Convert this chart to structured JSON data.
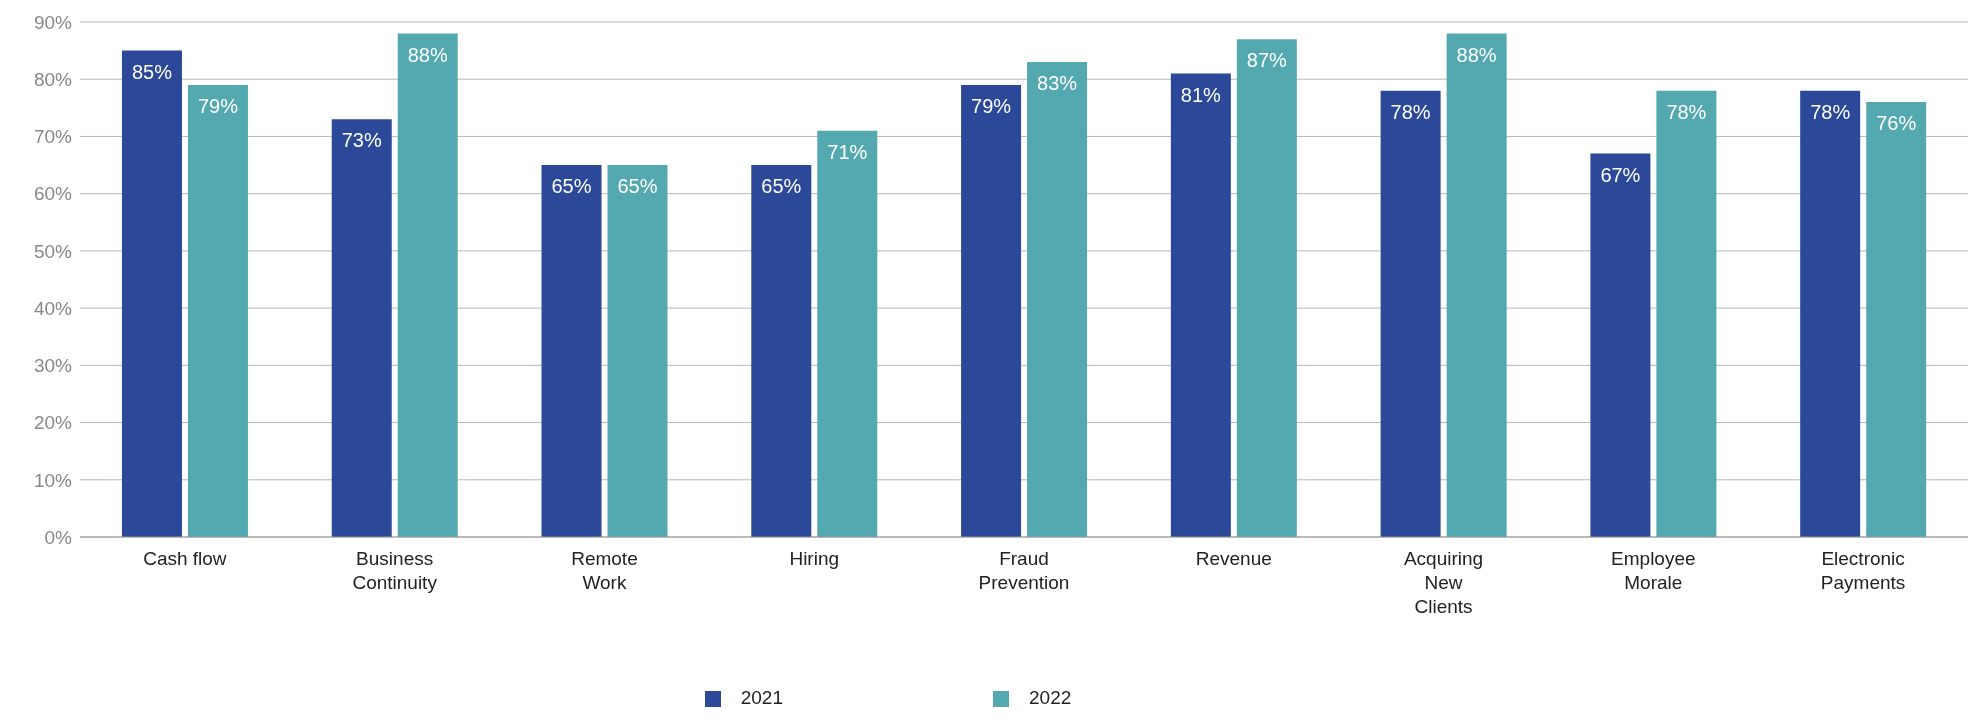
{
  "chart_data": {
    "type": "bar",
    "categories": [
      "Cash flow",
      "Business Continuity",
      "Remote Work",
      "Hiring",
      "Fraud Prevention",
      "Revenue",
      "Acquiring New Clients",
      "Employee Morale",
      "Electronic Payments"
    ],
    "series": [
      {
        "name": "2021",
        "color": "#2b4899",
        "values": [
          85,
          73,
          65,
          65,
          79,
          81,
          78,
          67,
          78
        ],
        "value_labels": [
          "85%",
          "73%",
          "65%",
          "65%",
          "79%",
          "81%",
          "78%",
          "67%",
          "78%"
        ]
      },
      {
        "name": "2022",
        "color": "#54a9b0",
        "values": [
          79,
          88,
          65,
          71,
          83,
          87,
          88,
          78,
          76
        ],
        "value_labels": [
          "79%",
          "88%",
          "65%",
          "71%",
          "83%",
          "87%",
          "88%",
          "78%",
          "76%"
        ]
      }
    ],
    "ylim": [
      0,
      90
    ],
    "yticks": [
      {
        "value": 0,
        "label": "0%"
      },
      {
        "value": 10,
        "label": "10%"
      },
      {
        "value": 20,
        "label": "20%"
      },
      {
        "value": 30,
        "label": "30%"
      },
      {
        "value": 40,
        "label": "40%"
      },
      {
        "value": 50,
        "label": "50%"
      },
      {
        "value": 60,
        "label": "60%"
      },
      {
        "value": 70,
        "label": "70%"
      },
      {
        "value": 80,
        "label": "80%"
      },
      {
        "value": 90,
        "label": "90%"
      }
    ],
    "grid": "y",
    "legend": "bottom"
  }
}
